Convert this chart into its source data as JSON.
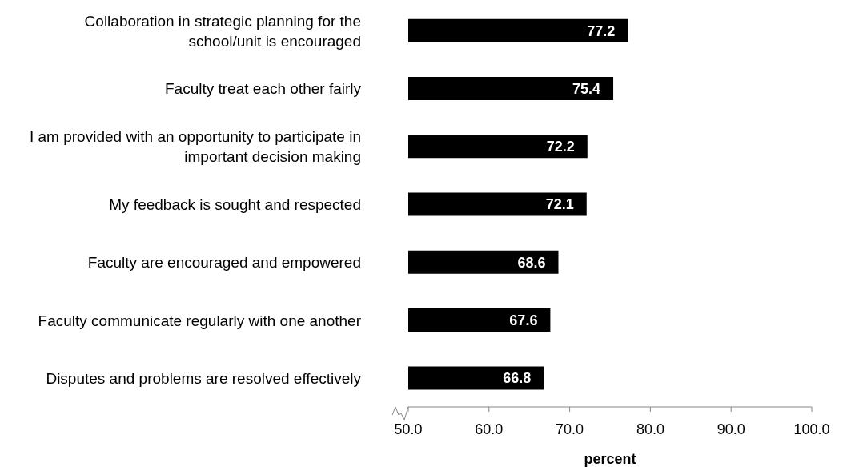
{
  "chart_data": {
    "type": "bar",
    "orientation": "horizontal",
    "categories": [
      "Collaboration in strategic planning for the school/unit is encouraged",
      "Faculty treat each other fairly",
      "I am provided with an opportunity to participate in important decision making",
      "My feedback is sought and respected",
      "Faculty are encouraged and empowered",
      "Faculty communicate regularly with one another",
      "Disputes and problems are resolved effectively"
    ],
    "values": [
      77.2,
      75.4,
      72.2,
      72.1,
      68.6,
      67.6,
      66.8
    ],
    "color": "#000000",
    "xlabel": "percent",
    "xlim": [
      50,
      100
    ],
    "xticks": [
      {
        "value": 50,
        "label": "50.0"
      },
      {
        "value": 60,
        "label": "60.0"
      },
      {
        "value": 70,
        "label": "70.0"
      },
      {
        "value": 80,
        "label": "80.0"
      },
      {
        "value": 90,
        "label": "90.0"
      },
      {
        "value": 100,
        "label": "100.0"
      }
    ],
    "data_labels": true
  }
}
